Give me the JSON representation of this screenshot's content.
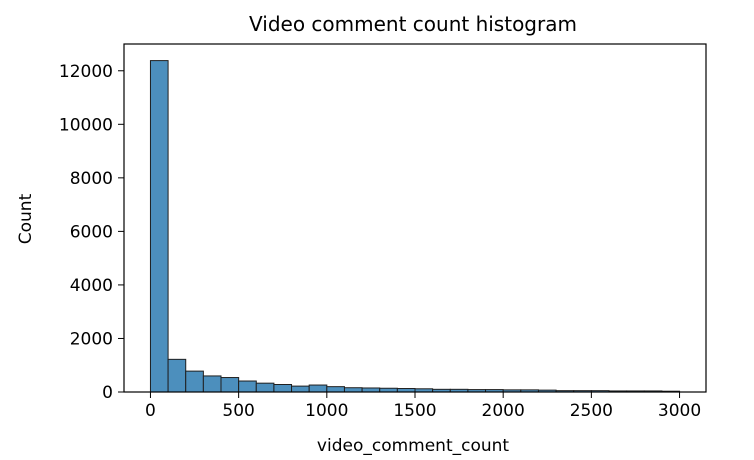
{
  "chart_data": {
    "type": "bar",
    "title": "Video comment count histogram",
    "xlabel": "video_comment_count",
    "ylabel": "Count",
    "bin_width": 100,
    "bins": [
      {
        "x_start": 0,
        "x_end": 100,
        "count": 12380
      },
      {
        "x_start": 100,
        "x_end": 200,
        "count": 1220
      },
      {
        "x_start": 200,
        "x_end": 300,
        "count": 780
      },
      {
        "x_start": 300,
        "x_end": 400,
        "count": 600
      },
      {
        "x_start": 400,
        "x_end": 500,
        "count": 540
      },
      {
        "x_start": 500,
        "x_end": 600,
        "count": 410
      },
      {
        "x_start": 600,
        "x_end": 700,
        "count": 330
      },
      {
        "x_start": 700,
        "x_end": 800,
        "count": 280
      },
      {
        "x_start": 800,
        "x_end": 900,
        "count": 220
      },
      {
        "x_start": 900,
        "x_end": 1000,
        "count": 260
      },
      {
        "x_start": 1000,
        "x_end": 1100,
        "count": 200
      },
      {
        "x_start": 1100,
        "x_end": 1200,
        "count": 160
      },
      {
        "x_start": 1200,
        "x_end": 1300,
        "count": 150
      },
      {
        "x_start": 1300,
        "x_end": 1400,
        "count": 140
      },
      {
        "x_start": 1400,
        "x_end": 1500,
        "count": 130
      },
      {
        "x_start": 1500,
        "x_end": 1600,
        "count": 120
      },
      {
        "x_start": 1600,
        "x_end": 1700,
        "count": 100
      },
      {
        "x_start": 1700,
        "x_end": 1800,
        "count": 100
      },
      {
        "x_start": 1800,
        "x_end": 1900,
        "count": 90
      },
      {
        "x_start": 1900,
        "x_end": 2000,
        "count": 90
      },
      {
        "x_start": 2000,
        "x_end": 2100,
        "count": 80
      },
      {
        "x_start": 2100,
        "x_end": 2200,
        "count": 80
      },
      {
        "x_start": 2200,
        "x_end": 2300,
        "count": 70
      },
      {
        "x_start": 2300,
        "x_end": 2400,
        "count": 50
      },
      {
        "x_start": 2400,
        "x_end": 2500,
        "count": 50
      },
      {
        "x_start": 2500,
        "x_end": 2600,
        "count": 50
      },
      {
        "x_start": 2600,
        "x_end": 2700,
        "count": 40
      },
      {
        "x_start": 2700,
        "x_end": 2800,
        "count": 40
      },
      {
        "x_start": 2800,
        "x_end": 2900,
        "count": 40
      },
      {
        "x_start": 2900,
        "x_end": 3000,
        "count": 30
      }
    ],
    "xlim": [
      -150,
      3150
    ],
    "ylim": [
      0,
      13000
    ],
    "x_ticks": [
      0,
      500,
      1000,
      1500,
      2000,
      2500,
      3000
    ],
    "x_tick_labels": [
      "0",
      "500",
      "1000",
      "1500",
      "2000",
      "2500",
      "3000"
    ],
    "y_ticks": [
      0,
      2000,
      4000,
      6000,
      8000,
      10000,
      12000
    ],
    "y_tick_labels": [
      "0",
      "2000",
      "4000",
      "6000",
      "8000",
      "10000",
      "12000"
    ],
    "grid": false,
    "legend": "none",
    "bar_color": "#4c8fbd",
    "bar_edge_color": "#1f1f1f"
  }
}
